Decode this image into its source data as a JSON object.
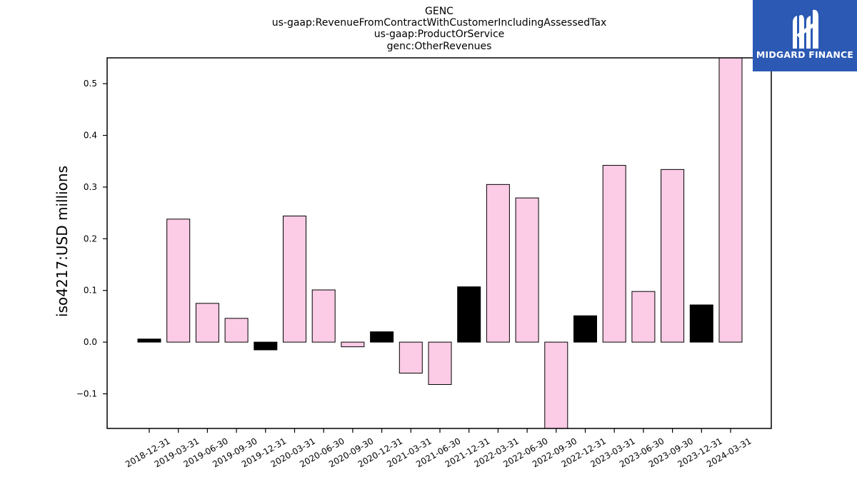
{
  "chart_data": {
    "type": "bar",
    "title_lines": [
      "GENC",
      "us-gaap:RevenueFromContractWithCustomerIncludingAssessedTax",
      "us-gaap:ProductOrService",
      "genc:OtherRevenues"
    ],
    "xlabel": "",
    "ylabel": "iso4217:USD  millions",
    "categories": [
      "2018-12-31",
      "2019-03-31",
      "2019-06-30",
      "2019-09-30",
      "2019-12-31",
      "2020-03-31",
      "2020-06-30",
      "2020-09-30",
      "2020-12-31",
      "2021-03-31",
      "2021-06-30",
      "2021-12-31",
      "2022-03-31",
      "2022-06-30",
      "2022-09-30",
      "2022-12-31",
      "2023-03-31",
      "2023-06-30",
      "2023-09-30",
      "2023-12-31",
      "2024-03-31"
    ],
    "values": [
      0.006,
      0.238,
      0.075,
      0.046,
      -0.015,
      0.244,
      0.101,
      -0.009,
      0.02,
      -0.06,
      -0.082,
      0.107,
      0.305,
      0.279,
      -0.17,
      0.051,
      0.342,
      0.098,
      0.334,
      0.072,
      0.55
    ],
    "bar_style": [
      "black",
      "pink",
      "pink",
      "pink",
      "black",
      "pink",
      "pink",
      "pink",
      "black",
      "pink",
      "pink",
      "black",
      "pink",
      "pink",
      "pink",
      "black",
      "pink",
      "pink",
      "pink",
      "black",
      "pink"
    ],
    "colors": {
      "pink": "#fccbe5",
      "black": "#000000",
      "edge": "#000000"
    },
    "ylim": [
      -0.167,
      0.55
    ],
    "yticks": [
      -0.1,
      0.0,
      0.1,
      0.2,
      0.3,
      0.4,
      0.5
    ],
    "ytick_labels": [
      "−0.1",
      "0.0",
      "0.1",
      "0.2",
      "0.3",
      "0.4",
      "0.5"
    ],
    "grid": false,
    "legend": "none"
  },
  "logo": {
    "text": "MIDGARD FINANCE",
    "background": "#2b59b4"
  }
}
